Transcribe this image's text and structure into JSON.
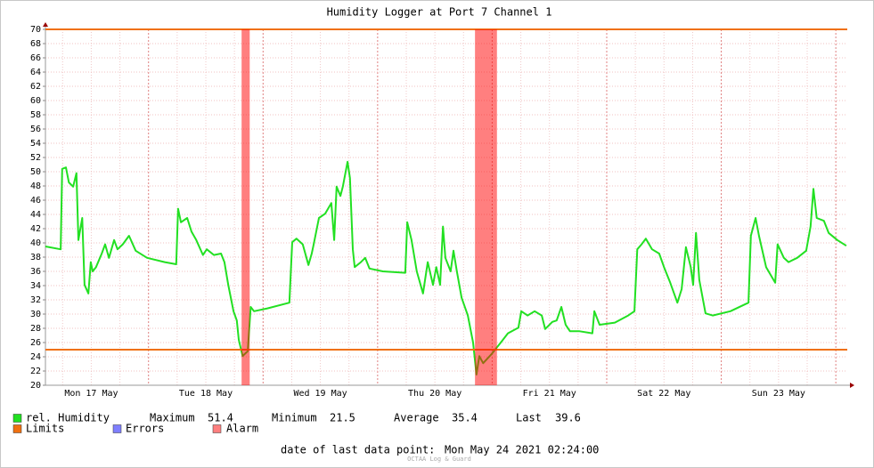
{
  "chart_data": {
    "type": "line",
    "title": "Humidity Logger at Port 7 Channel 1",
    "x": [
      2.4,
      5.6,
      5.9,
      6.7,
      7.3,
      8.2,
      8.9,
      9.3,
      10.1,
      10.6,
      11.4,
      11.9,
      12.3,
      13.0,
      14.2,
      14.9,
      15.7,
      16.8,
      17.5,
      18.6,
      19.9,
      21.3,
      23.7,
      27.4,
      29.8,
      30.2,
      30.8,
      32.1,
      33.0,
      34.0,
      35.4,
      36.2,
      37.7,
      39.2,
      39.9,
      40.7,
      41.8,
      42.5,
      42.9,
      43.7,
      44.8,
      45.4,
      46.1,
      48.9,
      53.5,
      54.1,
      55.0,
      56.3,
      57.5,
      58.2,
      58.6,
      59.7,
      61.0,
      62.3,
      62.9,
      63.4,
      64.2,
      64.7,
      65.7,
      66.2,
      66.8,
      67.2,
      68.5,
      69.4,
      70.3,
      73.1,
      77.8,
      78.2,
      79.1,
      80.2,
      81.5,
      82.5,
      83.6,
      84.3,
      85.1,
      85.7,
      86.2,
      87.3,
      87.9,
      88.6,
      89.6,
      90.9,
      92.0,
      92.7,
      93.3,
      94.1,
      95.9,
      97.8,
      99.3,
      101.5,
      102.1,
      103.4,
      104.9,
      106.4,
      107.1,
      108.6,
      109.5,
      110.5,
      111.4,
      112.3,
      114.2,
      117.0,
      117.4,
      118.5,
      121.7,
      124.5,
      125.8,
      126.4,
      127.3,
      128.2,
      129.5,
      131.0,
      132.0,
      133.3,
      134.8,
      135.7,
      136.6,
      137.6,
      138.1,
      138.7,
      139.4,
      140.7,
      142.2,
      145.9,
      149.7,
      150.2,
      151.2,
      151.9,
      153.4,
      155.3,
      155.8,
      157.1,
      158.1,
      159.9,
      161.8,
      162.7,
      163.3,
      164.0,
      165.5,
      166.5,
      168.3,
      170.2
    ],
    "series": [
      {
        "name": "rel. Humidity",
        "color": "#22e022",
        "values": [
          39.5,
          39.1,
          50.4,
          50.6,
          48.5,
          47.9,
          49.8,
          40.4,
          43.5,
          34.1,
          32.9,
          37.3,
          36.0,
          36.6,
          38.5,
          39.8,
          37.9,
          40.4,
          39.1,
          39.8,
          41.0,
          38.9,
          37.9,
          37.3,
          37.0,
          44.8,
          42.9,
          43.5,
          41.6,
          40.4,
          38.3,
          39.1,
          38.3,
          38.5,
          37.3,
          34.1,
          30.4,
          29.1,
          26.4,
          24.1,
          24.8,
          31.0,
          30.4,
          30.8,
          31.6,
          40.1,
          40.6,
          39.8,
          36.9,
          38.5,
          39.8,
          43.5,
          44.1,
          45.6,
          40.4,
          47.9,
          46.6,
          47.9,
          51.4,
          49.1,
          39.1,
          36.6,
          37.3,
          37.9,
          36.4,
          36.0,
          35.8,
          42.9,
          40.4,
          36.0,
          32.9,
          37.3,
          34.1,
          36.6,
          34.1,
          42.3,
          37.9,
          36.0,
          38.9,
          36.0,
          32.3,
          29.8,
          26.0,
          21.5,
          24.1,
          23.1,
          24.4,
          26.0,
          27.3,
          28.1,
          30.4,
          29.8,
          30.4,
          29.8,
          27.9,
          28.9,
          29.1,
          31.0,
          28.5,
          27.6,
          27.6,
          27.3,
          30.4,
          28.5,
          28.8,
          29.8,
          30.4,
          39.1,
          39.8,
          40.6,
          39.1,
          38.5,
          36.6,
          34.4,
          31.6,
          33.5,
          39.4,
          36.6,
          34.1,
          41.4,
          34.8,
          30.1,
          29.8,
          30.4,
          31.6,
          41.0,
          43.5,
          41.0,
          36.6,
          34.4,
          39.8,
          37.9,
          37.3,
          37.9,
          38.9,
          42.3,
          47.6,
          43.5,
          43.1,
          41.4,
          40.4,
          39.6
        ]
      }
    ],
    "xlim": [
      2.4,
      170.4
    ],
    "xticks": [
      {
        "value": 12,
        "label": "Mon 17 May"
      },
      {
        "value": 36,
        "label": "Tue 18 May"
      },
      {
        "value": 60,
        "label": "Wed 19 May"
      },
      {
        "value": 84,
        "label": "Thu 20 May"
      },
      {
        "value": 108,
        "label": "Fri 21 May"
      },
      {
        "value": 132,
        "label": "Sat 22 May"
      },
      {
        "value": 156,
        "label": "Sun 23 May"
      }
    ],
    "xgrid": [
      6,
      12,
      18,
      24,
      30,
      36,
      42,
      48,
      54,
      60,
      66,
      72,
      78,
      84,
      90,
      96,
      102,
      108,
      114,
      120,
      126,
      132,
      138,
      144,
      150,
      156,
      162,
      168
    ],
    "ylim": [
      20,
      70
    ],
    "yticks": [
      20,
      22,
      24,
      26,
      28,
      30,
      32,
      34,
      36,
      38,
      40,
      42,
      44,
      46,
      48,
      50,
      52,
      54,
      56,
      58,
      60,
      62,
      64,
      66,
      68,
      70
    ],
    "grid": true,
    "limits": {
      "name": "Limits",
      "color": "#f07010",
      "values": [
        70,
        25
      ]
    },
    "alarms": {
      "name": "Alarm",
      "color": "#ff7f7f",
      "ranges": [
        [
          43.5,
          45.2
        ],
        [
          92.4,
          97.0
        ]
      ]
    },
    "errors": {
      "name": "Errors",
      "color": "#7f7fff"
    },
    "stats": [
      {
        "label": "Maximum",
        "value": 51.4
      },
      {
        "label": "Minimum",
        "value": 21.5
      },
      {
        "label": "Average",
        "value": 35.4
      },
      {
        "label": "Last",
        "value": 39.6
      }
    ],
    "footer": {
      "label": "date of last data point:",
      "value": "Mon May 24 2021 02:24:00"
    },
    "watermark": "OCTAA Log & Guard"
  }
}
